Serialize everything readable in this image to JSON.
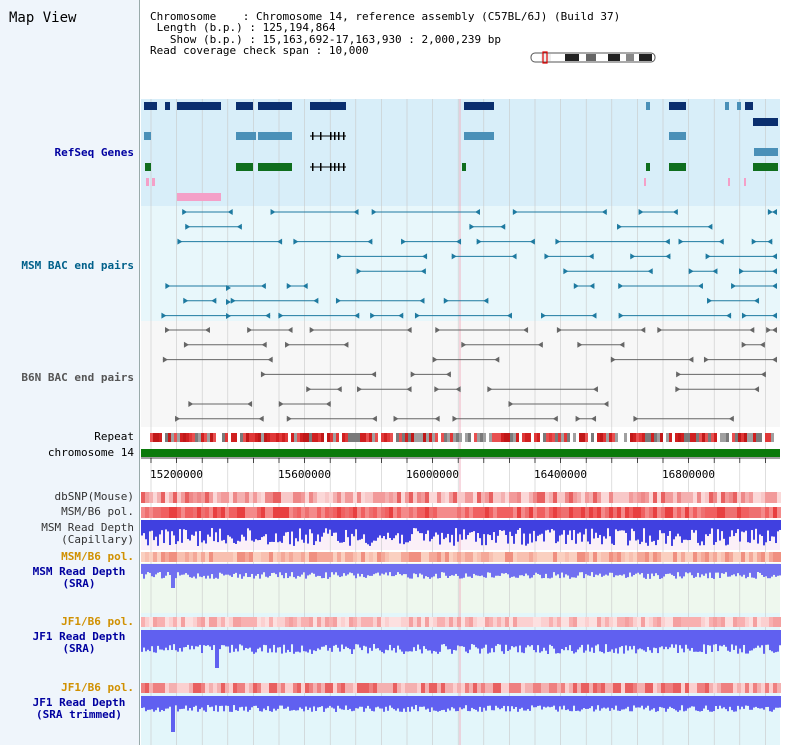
{
  "title": "Map View",
  "info": {
    "chromosome_label": "Chromosome",
    "chromosome_value": "Chromosome 14, reference assembly (C57BL/6J) (Build 37)",
    "length_label": "Length (b.p.)",
    "length_value": "125,194,864",
    "show_label": "Show (b.p.)",
    "show_value": "15,163,692-17,163,930 : 2,000,239 bp",
    "coverage_label": "Read coverage check span",
    "coverage_value": "10,000"
  },
  "tracks": {
    "refseq": "RefSeq Genes",
    "msm_bac": "MSM BAC end pairs",
    "b6n_bac": "B6N BAC end pairs",
    "repeat": "Repeat",
    "chromosome": "chromosome 14",
    "dbsnp": "dbSNP(Mouse)",
    "msm_b6_pol_1": "MSM/B6 pol.",
    "msm_depth_cap_1": "MSM Read Depth",
    "msm_depth_cap_2": "(Capillary)",
    "msm_b6_pol_2": "MSM/B6 pol.",
    "msm_depth_sra_1": "MSM Read Depth",
    "msm_depth_sra_2": "(SRA)",
    "jf1_b6_pol_1": "JF1/B6 pol.",
    "jf1_depth_sra_1": "JF1 Read Depth",
    "jf1_depth_sra_2": "(SRA)",
    "jf1_b6_pol_2": "JF1/B6 pol.",
    "jf1_depth_trim_1": "JF1 Read Depth",
    "jf1_depth_trim_2": "(SRA trimmed)"
  },
  "axis": {
    "ticks": [
      "15200000",
      "15600000",
      "16000000",
      "16400000",
      "16800000"
    ]
  },
  "colors": {
    "navy": "#0a2e6e",
    "teal": "#4a90b8",
    "green": "#0f6e1e",
    "pink": "#f4a0c8",
    "bluelabel": "#0000a0",
    "orange": "#d09000",
    "tealtext": "#00608a",
    "gray": "#555555"
  }
}
